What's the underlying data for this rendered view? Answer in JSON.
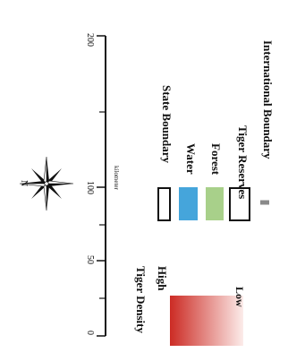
{
  "scale_bar": {
    "ticks": [
      "0",
      "50",
      "100",
      "200"
    ],
    "unit": "kilometer"
  },
  "north_arrow": {
    "icon": "compass-rose-icon",
    "label": "N"
  },
  "tiger_density": {
    "title": "Tiger Density",
    "high_label": "High",
    "low_label": "Low",
    "high_color": "#cc2b24",
    "low_color": "#fcecea"
  },
  "legend_items": [
    {
      "label": "State Boundary",
      "symbol": "box-outline",
      "color": "#111111"
    },
    {
      "label": "Water",
      "symbol": "box-fill",
      "color": "#45a5db"
    },
    {
      "label": "Forest",
      "symbol": "box-fill",
      "color": "#a8d08a"
    },
    {
      "label": "Tiger Reserves",
      "symbol": "box-outline",
      "color": "#111111"
    },
    {
      "label": "International Boundary",
      "symbol": "line",
      "color": "#8a8a8a"
    }
  ]
}
